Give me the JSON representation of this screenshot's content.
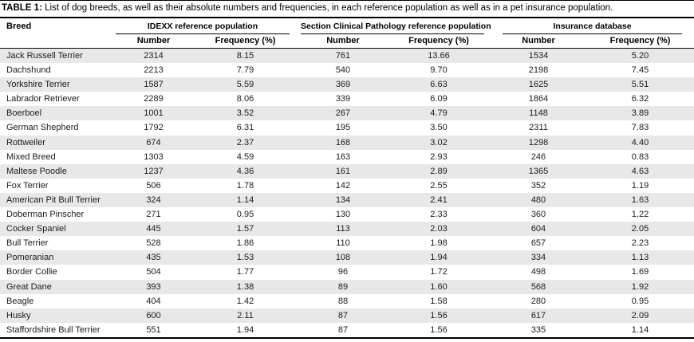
{
  "title": {
    "label": "TABLE 1:",
    "text": " List of dog breeds, as well as their absolute numbers and frequencies, in each reference population as well as in a pet insurance population."
  },
  "table": {
    "breed_header": "Breed",
    "groups": [
      {
        "label": "IDEXX reference population"
      },
      {
        "label": "Section Clinical Pathology reference population"
      },
      {
        "label": "Insurance database"
      }
    ],
    "subheaders": {
      "number": "Number",
      "frequency": "Frequency (%)"
    },
    "rows": [
      [
        "Jack Russell Terrier",
        "2314",
        "8.15",
        "761",
        "13.66",
        "1534",
        "5.20"
      ],
      [
        "Dachshund",
        "2213",
        "7.79",
        "540",
        "9.70",
        "2198",
        "7.45"
      ],
      [
        "Yorkshire Terrier",
        "1587",
        "5.59",
        "369",
        "6.63",
        "1625",
        "5.51"
      ],
      [
        "Labrador Retriever",
        "2289",
        "8.06",
        "339",
        "6.09",
        "1864",
        "6.32"
      ],
      [
        "Boerboel",
        "1001",
        "3.52",
        "267",
        "4.79",
        "1148",
        "3.89"
      ],
      [
        "German Shepherd",
        "1792",
        "6.31",
        "195",
        "3.50",
        "2311",
        "7.83"
      ],
      [
        "Rottweiler",
        "674",
        "2.37",
        "168",
        "3.02",
        "1298",
        "4.40"
      ],
      [
        "Mixed Breed",
        "1303",
        "4.59",
        "163",
        "2.93",
        "246",
        "0.83"
      ],
      [
        "Maltese Poodle",
        "1237",
        "4.36",
        "161",
        "2.89",
        "1365",
        "4.63"
      ],
      [
        "Fox Terrier",
        "506",
        "1.78",
        "142",
        "2.55",
        "352",
        "1.19"
      ],
      [
        "American Pit Bull Terrier",
        "324",
        "1.14",
        "134",
        "2.41",
        "480",
        "1.63"
      ],
      [
        "Doberman Pinscher",
        "271",
        "0.95",
        "130",
        "2.33",
        "360",
        "1.22"
      ],
      [
        "Cocker Spaniel",
        "445",
        "1.57",
        "113",
        "2.03",
        "604",
        "2.05"
      ],
      [
        "Bull Terrier",
        "528",
        "1.86",
        "110",
        "1.98",
        "657",
        "2.23"
      ],
      [
        "Pomeranian",
        "435",
        "1.53",
        "108",
        "1.94",
        "334",
        "1.13"
      ],
      [
        "Border Collie",
        "504",
        "1.77",
        "96",
        "1.72",
        "498",
        "1.69"
      ],
      [
        "Great Dane",
        "393",
        "1.38",
        "89",
        "1.60",
        "568",
        "1.92"
      ],
      [
        "Beagle",
        "404",
        "1.42",
        "88",
        "1.58",
        "280",
        "0.95"
      ],
      [
        "Husky",
        "600",
        "2.11",
        "87",
        "1.56",
        "617",
        "2.09"
      ],
      [
        "Staffordshire Bull Terrier",
        "551",
        "1.94",
        "87",
        "1.56",
        "335",
        "1.14"
      ]
    ]
  },
  "colors": {
    "stripe": "#e8e8e8",
    "rule": "#000000",
    "text": "#1c1c1c"
  }
}
